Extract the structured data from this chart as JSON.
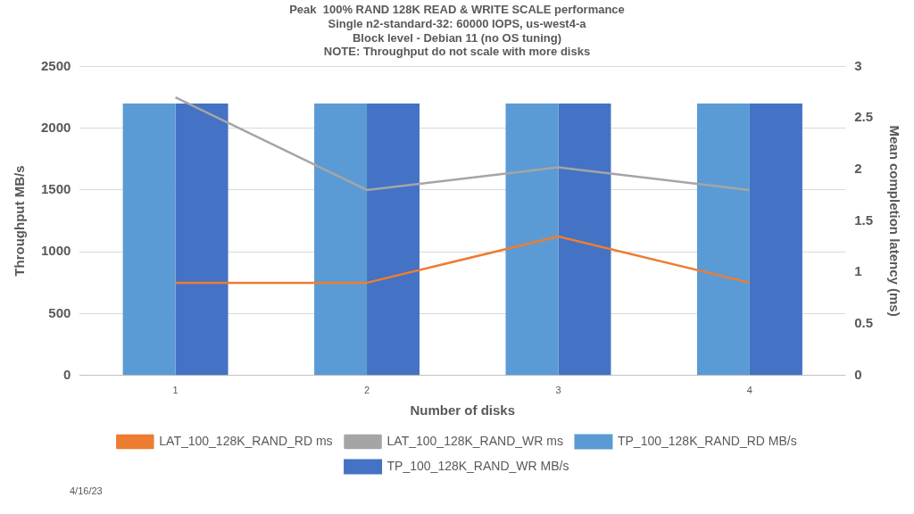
{
  "chart_data": {
    "type": "bar",
    "title": "Peak  100% RAND 128K READ & WRITE SCALE performance",
    "subtitle": "Single n2-standard-32: 60000 IOPS, us-west4-a\nBlock level - Debian 11 (no OS tuning)\nNOTE: Throughput do not scale with more disks",
    "xlabel": "Number of disks",
    "ylabel": "Throughput MB/s",
    "y2label": "Mean completion latency (ms)",
    "categories": [
      "1",
      "2",
      "3",
      "4"
    ],
    "series": [
      {
        "name": "TP_100_128K_RAND_RD MB/s",
        "color": "#5b9bd5",
        "values": [
          2200,
          2200,
          2200,
          2200
        ]
      },
      {
        "name": "TP_100_128K_RAND_WR MB/s",
        "color": "#4472c4",
        "values": [
          2200,
          2200,
          2200,
          2200
        ]
      },
      {
        "name": "LAT_100_128K_RAND_RD ms",
        "type": "line",
        "axis": "y2",
        "color": "#ed7d31",
        "values": [
          0.9,
          0.9,
          1.35,
          0.9
        ]
      },
      {
        "name": "LAT_100_128K_RAND_WR ms",
        "type": "line",
        "axis": "y2",
        "color": "#a5a5a5",
        "values": [
          2.7,
          1.8,
          2.02,
          1.8
        ]
      }
    ],
    "ylim": [
      0,
      2500
    ],
    "yticks": [
      0,
      500,
      1000,
      1500,
      2000,
      2500
    ],
    "y2lim": [
      0,
      3
    ],
    "y2ticks": [
      0,
      0.5,
      1,
      1.5,
      2,
      2.5,
      3
    ],
    "grid": "y",
    "legend": "bottom",
    "marker": "none",
    "line_style": "solid",
    "annotations": [
      "4/16/23"
    ]
  }
}
